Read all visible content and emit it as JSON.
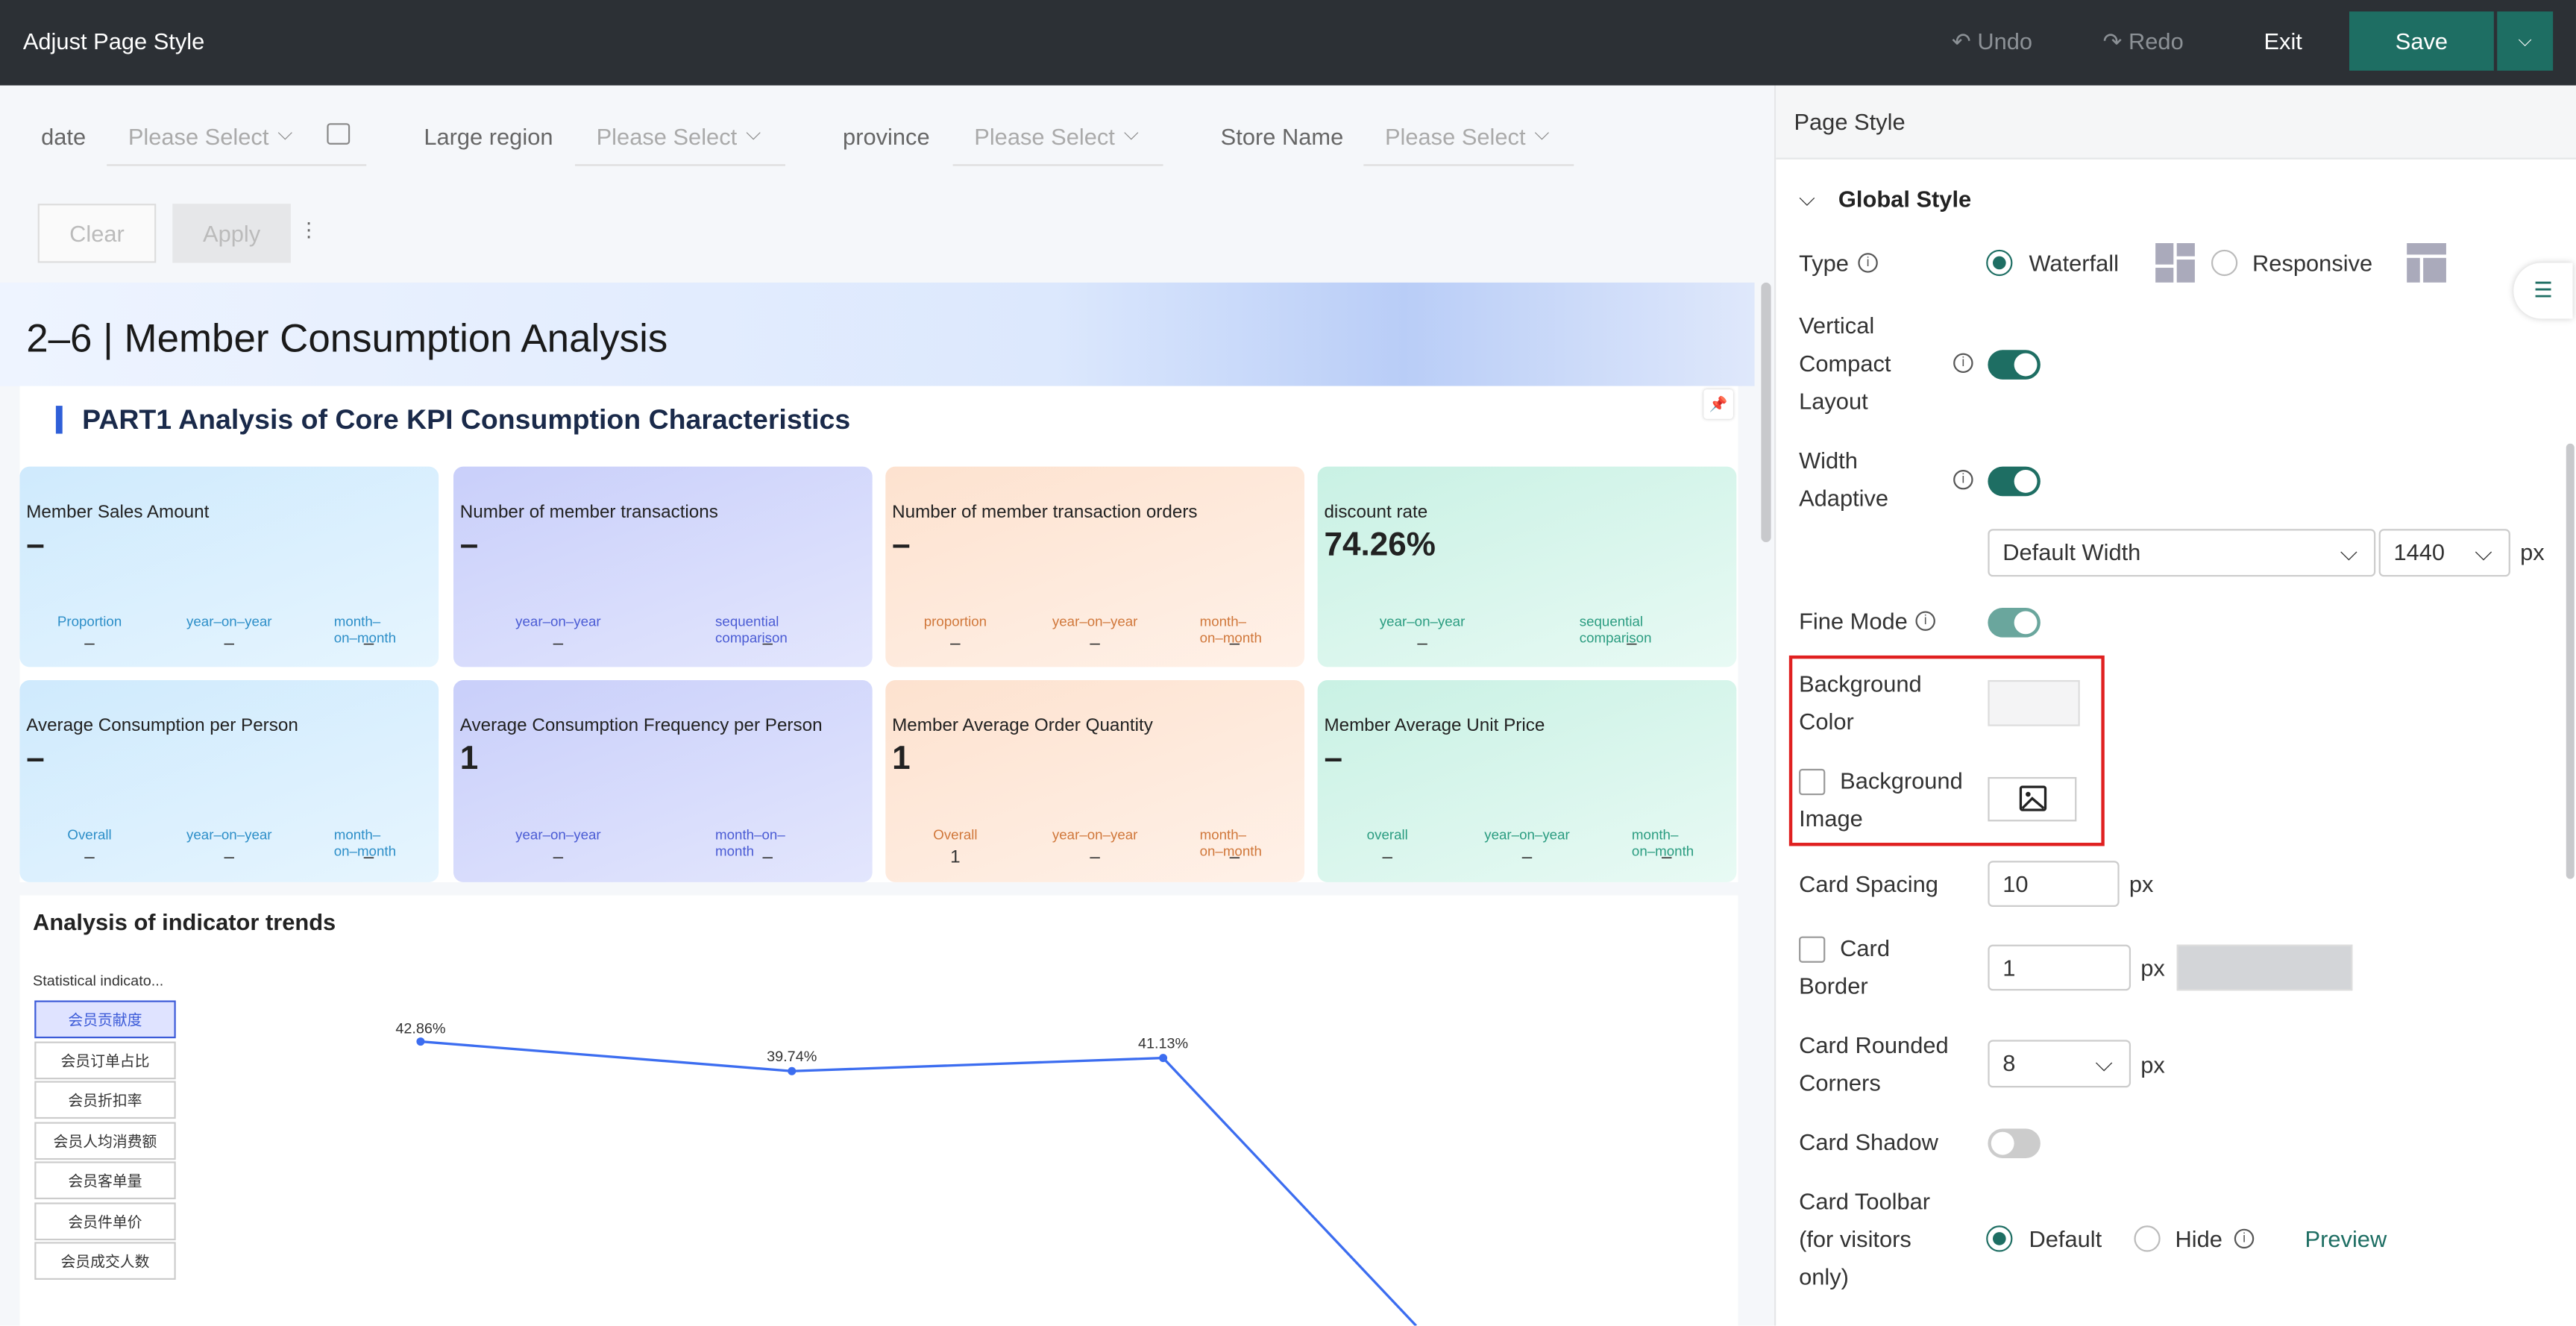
{
  "topbar": {
    "title": "Adjust Page Style",
    "undo": "Undo",
    "redo": "Redo",
    "exit": "Exit",
    "save": "Save"
  },
  "filters": [
    {
      "label": "date",
      "placeholder": "Please Select"
    },
    {
      "label": "Large region",
      "placeholder": "Please Select"
    },
    {
      "label": "province",
      "placeholder": "Please Select"
    },
    {
      "label": "Store Name",
      "placeholder": "Please Select"
    }
  ],
  "filter_buttons": {
    "clear": "Clear",
    "apply": "Apply"
  },
  "dashboard": {
    "title": "2–6 | Member Consumption Analysis",
    "section": "PART1 Analysis of Core KPI Consumption Characteristics",
    "cards": [
      {
        "title": "Member Sales Amount",
        "value": "–",
        "metrics": [
          {
            "label": "Proportion",
            "value": "–"
          },
          {
            "label": "year–on–year",
            "value": "–"
          },
          {
            "label": "month–on–month",
            "value": "–"
          }
        ]
      },
      {
        "title": "Number of member transactions",
        "value": "–",
        "metrics": [
          {
            "label": "year–on–year",
            "value": "–"
          },
          {
            "label": "sequential comparison",
            "value": "–"
          }
        ]
      },
      {
        "title": "Number of member transaction orders",
        "value": "–",
        "metrics": [
          {
            "label": "proportion",
            "value": "–"
          },
          {
            "label": "year–on–year",
            "value": "–"
          },
          {
            "label": "month–on–month",
            "value": "–"
          }
        ]
      },
      {
        "title": "discount rate",
        "value": "74.26%",
        "metrics": [
          {
            "label": "year–on–year",
            "value": "–"
          },
          {
            "label": "sequential comparison",
            "value": "–"
          }
        ]
      },
      {
        "title": "Average Consumption per Person",
        "value": "–",
        "metrics": [
          {
            "label": "Overall",
            "value": "–"
          },
          {
            "label": "year–on–year",
            "value": "–"
          },
          {
            "label": "month–on–month",
            "value": "–"
          }
        ]
      },
      {
        "title": "Average Consumption Frequency per Person",
        "value": "1",
        "metrics": [
          {
            "label": "year–on–year",
            "value": "–"
          },
          {
            "label": "month–on–month",
            "value": "–"
          }
        ]
      },
      {
        "title": "Member Average Order Quantity",
        "value": "1",
        "metrics": [
          {
            "label": "Overall",
            "value": "1"
          },
          {
            "label": "year–on–year",
            "value": "–"
          },
          {
            "label": "month–on–month",
            "value": "–"
          }
        ]
      },
      {
        "title": "Member Average Unit Price",
        "value": "–",
        "metrics": [
          {
            "label": "overall",
            "value": "–"
          },
          {
            "label": "year–on–year",
            "value": "–"
          },
          {
            "label": "month–on–month",
            "value": "–"
          }
        ]
      }
    ],
    "trend": {
      "title": "Analysis of indicator trends",
      "selector_label": "Statistical indicato...",
      "options": [
        "会员贡献度",
        "会员订单占比",
        "会员折扣率",
        "会员人均消费额",
        "会员客单量",
        "会员件单价",
        "会员成交人数"
      ],
      "point_labels": [
        "42.86%",
        "39.74%",
        "41.13%"
      ]
    }
  },
  "panel": {
    "header": "Page Style",
    "section": "Global Style",
    "type_label": "Type",
    "type_options": [
      "Waterfall",
      "Responsive"
    ],
    "vertical_compact": "Vertical Compact Layout",
    "width_adaptive": "Width Adaptive",
    "width_select": "Default Width",
    "width_value": "1440",
    "width_unit": "px",
    "fine_mode": "Fine Mode",
    "background_color": "Background Color",
    "background_image": "Background Image",
    "card_spacing": "Card Spacing",
    "card_spacing_value": "10",
    "card_spacing_unit": "px",
    "card_border": "Card Border",
    "card_border_value": "1",
    "card_border_unit": "px",
    "card_corners": "Card Rounded Corners",
    "card_corners_value": "8",
    "card_corners_unit": "px",
    "card_shadow": "Card Shadow",
    "card_toolbar": "Card Toolbar (for visitors only)",
    "toolbar_options": [
      "Default",
      "Hide"
    ],
    "preview": "Preview"
  }
}
